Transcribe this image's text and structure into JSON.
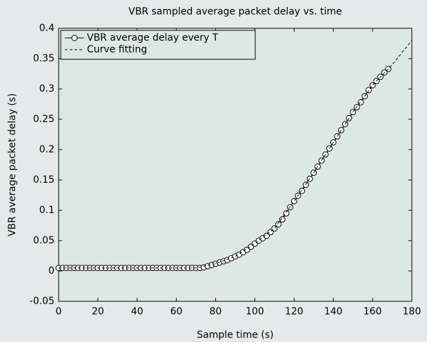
{
  "chart_data": {
    "type": "line",
    "title": "VBR sampled average packet delay vs. time",
    "xlabel": "Sample time (s)",
    "ylabel": "VBR average packet delay (s)",
    "xlim": [
      0,
      180
    ],
    "xticks": [
      0,
      20,
      40,
      60,
      80,
      100,
      120,
      140,
      160,
      180
    ],
    "ylim": [
      -0.05,
      0.4
    ],
    "yticks": [
      -0.05,
      0,
      0.05,
      0.1,
      0.15,
      0.2,
      0.25,
      0.3,
      0.35,
      0.4
    ],
    "legend": "upper left",
    "series": [
      {
        "name": "VBR average delay every T",
        "color": "#000000",
        "marker": "circle",
        "dash": false,
        "x": [
          0,
          2,
          4,
          6,
          8,
          10,
          12,
          14,
          16,
          18,
          20,
          22,
          24,
          26,
          28,
          30,
          32,
          34,
          36,
          38,
          40,
          42,
          44,
          46,
          48,
          50,
          52,
          54,
          56,
          58,
          60,
          62,
          64,
          66,
          68,
          70,
          72,
          74,
          76,
          78,
          80,
          82,
          84,
          86,
          88,
          90,
          92,
          94,
          96,
          98,
          100,
          102,
          104,
          106,
          108,
          110,
          112,
          114,
          116,
          118,
          120,
          122,
          124,
          126,
          128,
          130,
          132,
          134,
          136,
          138,
          140,
          142,
          144,
          146,
          148,
          150,
          152,
          154,
          156,
          158,
          160,
          162,
          164,
          166,
          168
        ],
        "values": [
          0.005,
          0.005,
          0.005,
          0.005,
          0.005,
          0.005,
          0.005,
          0.005,
          0.005,
          0.005,
          0.005,
          0.005,
          0.005,
          0.005,
          0.005,
          0.005,
          0.005,
          0.005,
          0.005,
          0.005,
          0.005,
          0.005,
          0.005,
          0.005,
          0.005,
          0.005,
          0.005,
          0.005,
          0.005,
          0.005,
          0.005,
          0.005,
          0.005,
          0.005,
          0.005,
          0.005,
          0.005,
          0.006,
          0.008,
          0.01,
          0.012,
          0.014,
          0.016,
          0.018,
          0.021,
          0.024,
          0.027,
          0.031,
          0.035,
          0.04,
          0.045,
          0.05,
          0.054,
          0.058,
          0.064,
          0.07,
          0.077,
          0.085,
          0.095,
          0.105,
          0.115,
          0.124,
          0.132,
          0.142,
          0.152,
          0.162,
          0.172,
          0.182,
          0.192,
          0.202,
          0.212,
          0.222,
          0.232,
          0.242,
          0.252,
          0.262,
          0.27,
          0.278,
          0.288,
          0.298,
          0.306,
          0.313,
          0.32,
          0.327,
          0.333
        ]
      },
      {
        "name": "Curve fitting",
        "color": "#000000",
        "marker": "none",
        "dash": true,
        "x": [
          0,
          70,
          80,
          90,
          100,
          110,
          120,
          130,
          140,
          150,
          160,
          170,
          180
        ],
        "values": [
          0.005,
          0.005,
          0.012,
          0.024,
          0.045,
          0.07,
          0.115,
          0.162,
          0.212,
          0.262,
          0.306,
          0.34,
          0.38
        ]
      }
    ]
  }
}
